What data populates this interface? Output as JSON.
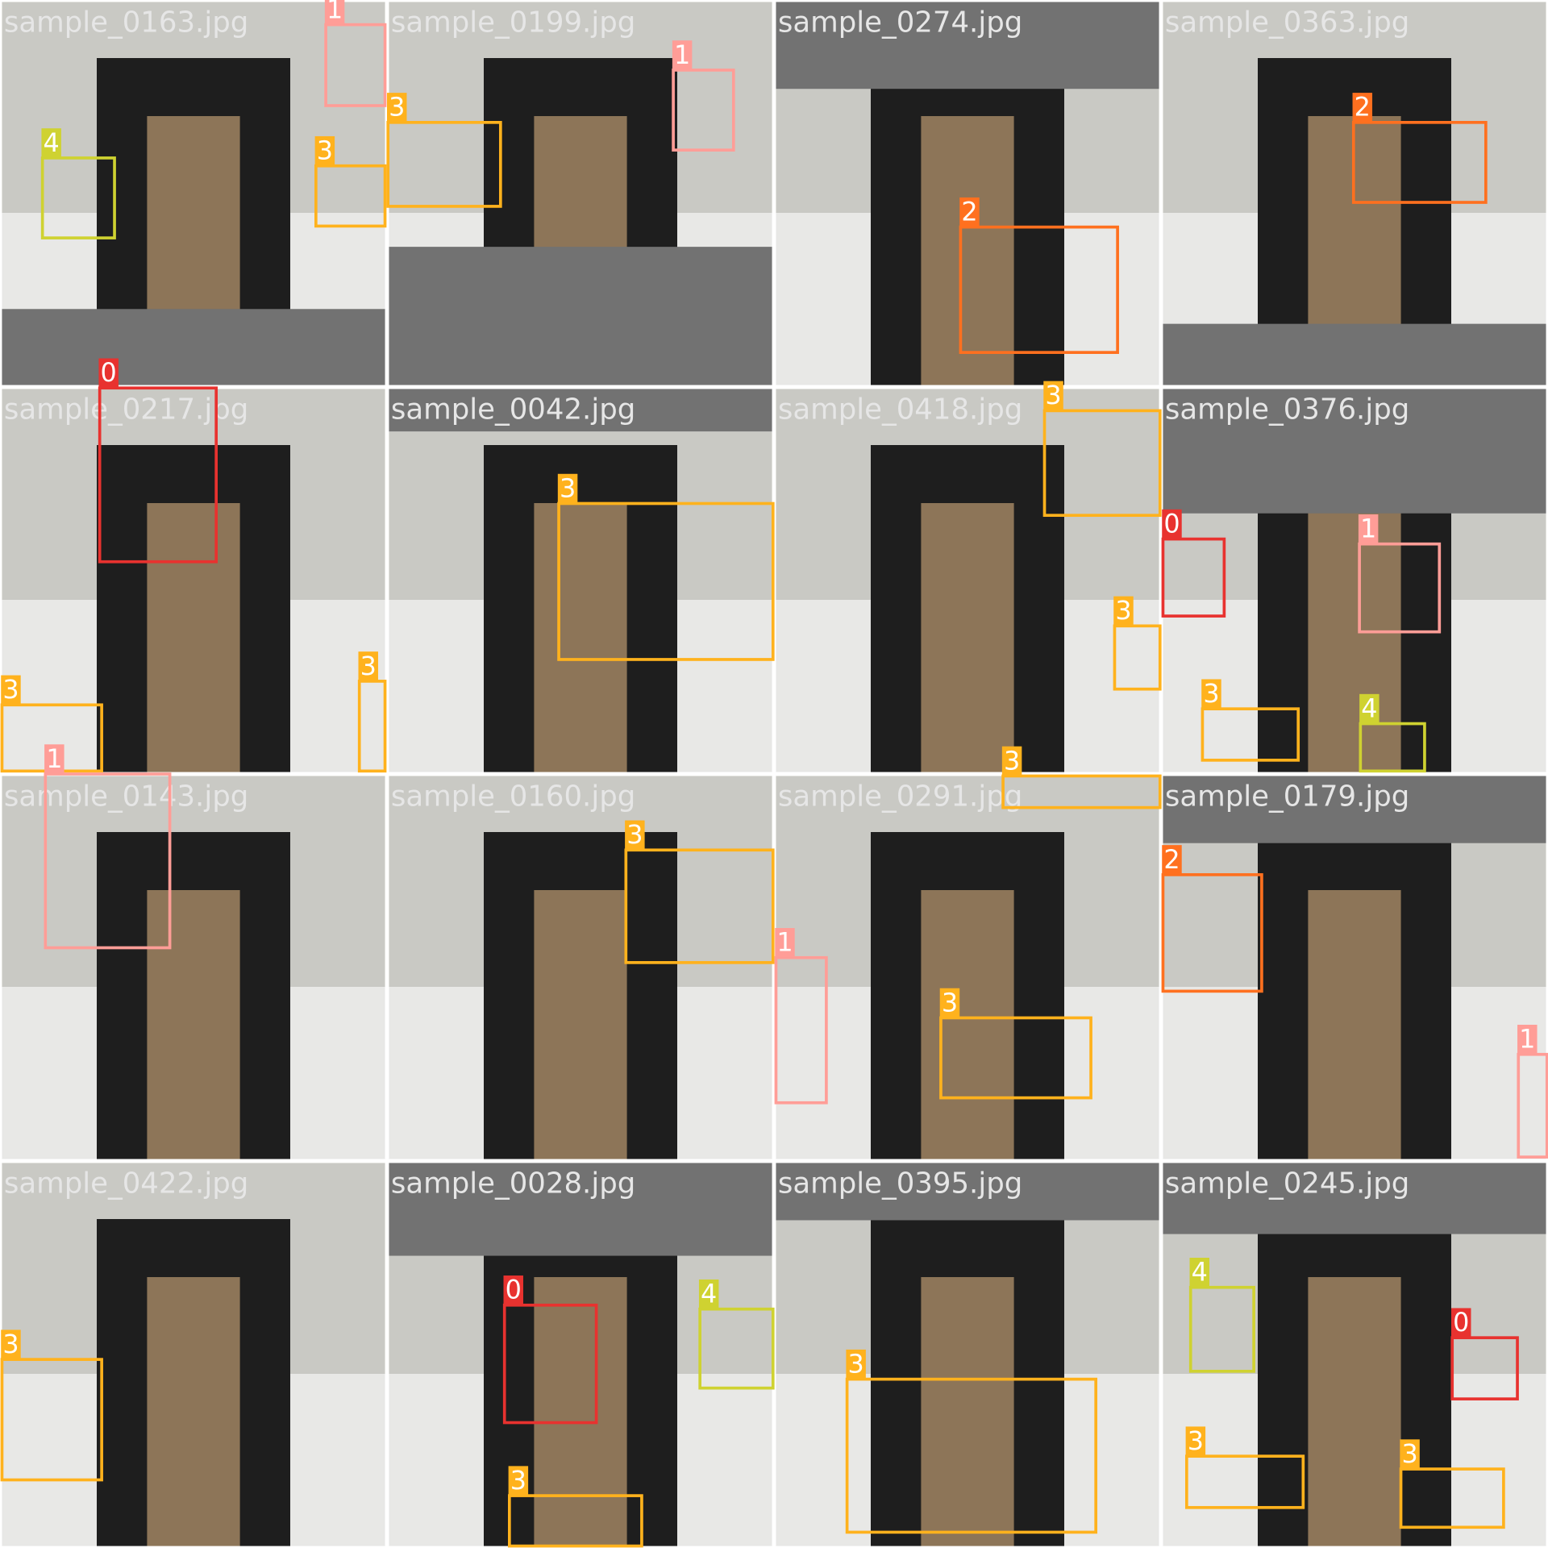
{
  "tiles": [
    {
      "filename": "sample_0163.jpg",
      "boxes": [
        {
          "class": 1
        },
        {
          "class": 4
        },
        {
          "class": 3
        }
      ]
    },
    {
      "filename": "sample_0199.jpg",
      "boxes": [
        {
          "class": 1
        },
        {
          "class": 3
        }
      ]
    },
    {
      "filename": "sample_0274.jpg",
      "boxes": [
        {
          "class": 2
        }
      ]
    },
    {
      "filename": "sample_0363.jpg",
      "boxes": [
        {
          "class": 2
        }
      ]
    },
    {
      "filename": "sample_0217.jpg",
      "boxes": [
        {
          "class": 0
        },
        {
          "class": 3
        },
        {
          "class": 3
        }
      ]
    },
    {
      "filename": "sample_0042.jpg",
      "boxes": [
        {
          "class": 3
        }
      ]
    },
    {
      "filename": "sample_0418.jpg",
      "boxes": [
        {
          "class": 3
        },
        {
          "class": 3
        }
      ]
    },
    {
      "filename": "sample_0376.jpg",
      "boxes": [
        {
          "class": 0
        },
        {
          "class": 1
        },
        {
          "class": 3
        },
        {
          "class": 4
        }
      ]
    },
    {
      "filename": "sample_0143.jpg",
      "boxes": [
        {
          "class": 1
        }
      ]
    },
    {
      "filename": "sample_0160.jpg",
      "boxes": [
        {
          "class": 3
        }
      ]
    },
    {
      "filename": "sample_0291.jpg",
      "boxes": [
        {
          "class": 3
        },
        {
          "class": 1
        },
        {
          "class": 3
        }
      ]
    },
    {
      "filename": "sample_0179.jpg",
      "boxes": [
        {
          "class": 2
        },
        {
          "class": 1
        }
      ]
    },
    {
      "filename": "sample_0422.jpg",
      "boxes": [
        {
          "class": 3
        }
      ]
    },
    {
      "filename": "sample_0028.jpg",
      "boxes": [
        {
          "class": 0
        },
        {
          "class": 4
        },
        {
          "class": 3
        }
      ]
    },
    {
      "filename": "sample_0395.jpg",
      "boxes": [
        {
          "class": 3
        }
      ]
    },
    {
      "filename": "sample_0245.jpg",
      "boxes": [
        {
          "class": 4
        },
        {
          "class": 0
        },
        {
          "class": 3
        },
        {
          "class": 3
        }
      ]
    }
  ]
}
